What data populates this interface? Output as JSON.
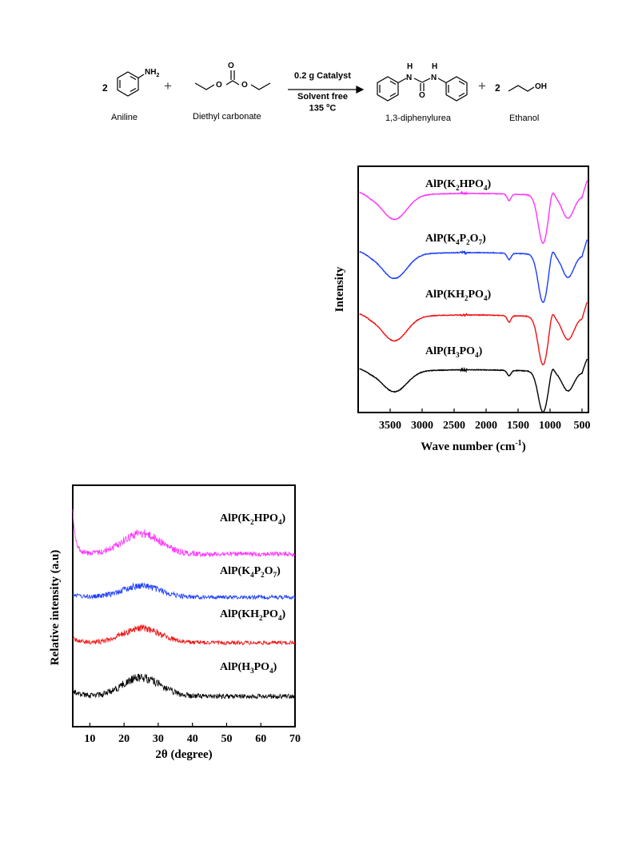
{
  "scheme": {
    "coef_aniline": "2",
    "coef_ethanol": "2",
    "plus": "+",
    "nh2": "NH",
    "nh2_sub": "2",
    "o_top": "O",
    "o_left": "O",
    "o_right": "O",
    "n_left": "N",
    "n_right": "N",
    "h_left": "H",
    "h_right": "H",
    "o_urea": "O",
    "oh": "OH",
    "aniline_label": "Aniline",
    "dec_label": "Diethyl carbonate",
    "urea_label": "1,3-diphenylurea",
    "ethanol_label": "Ethanol",
    "cond_catalyst": "0.2 g Catalyst",
    "cond_solvent": "Solvent free",
    "cond_temp": "135 ",
    "cond_temp_sup": "o",
    "cond_temp_unit": "C"
  },
  "chart_data": [
    {
      "type": "line",
      "name": "FTIR",
      "xlabel": "Wave number (cm",
      "xlabel_sup": "-1",
      "xlabel_end": ")",
      "ylabel": "Intensity",
      "x_reversed": true,
      "xlim": [
        4000,
        400
      ],
      "xticks": [
        "3500",
        "3000",
        "2500",
        "2000",
        "1500",
        "1000",
        "500"
      ],
      "xtick_values": [
        3500,
        3000,
        2500,
        2000,
        1500,
        1000,
        500
      ],
      "series": [
        {
          "base": "AlP(K",
          "sub1": "2",
          "mid": "HPO",
          "sub2": "4",
          "end": ")",
          "color": "#ff33ff",
          "offset": 3
        },
        {
          "base": "AlP(K",
          "sub1": "4",
          "mid": "P",
          "sub2": "2",
          "mid2": "O",
          "sub3": "7",
          "end": ")",
          "color": "#1a3cff",
          "offset": 2
        },
        {
          "base": "AlP(KH",
          "sub1": "2",
          "mid": "PO",
          "sub2": "4",
          "end": ")",
          "color": "#ee1111",
          "offset": 1
        },
        {
          "base": "AlP(H",
          "sub1": "3",
          "mid": "PO",
          "sub2": "4",
          "end": ")",
          "color": "#000000",
          "offset": 0
        }
      ]
    },
    {
      "type": "line",
      "name": "XRD",
      "xlabel": "2θ (degree)",
      "ylabel": "Relative intensity (a.u)",
      "xlim": [
        5,
        70
      ],
      "xticks": [
        "10",
        "20",
        "30",
        "40",
        "50",
        "60",
        "70"
      ],
      "xtick_values": [
        10,
        20,
        30,
        40,
        50,
        60,
        70
      ],
      "series": [
        {
          "base": "AlP(K",
          "sub1": "2",
          "mid": "HPO",
          "sub2": "4",
          "end": ")",
          "color": "#ff33ff",
          "offset": 3
        },
        {
          "base": "AlP(K",
          "sub1": "4",
          "mid": "P",
          "sub2": "2",
          "mid2": "O",
          "sub3": "7",
          "end": ")",
          "color": "#1a3cff",
          "offset": 2
        },
        {
          "base": "AlP(KH",
          "sub1": "2",
          "mid": "PO",
          "sub2": "4",
          "end": ")",
          "color": "#ee1111",
          "offset": 1
        },
        {
          "base": "AlP(H",
          "sub1": "3",
          "mid": "PO",
          "sub2": "4",
          "end": ")",
          "color": "#000000",
          "offset": 0
        }
      ]
    }
  ]
}
